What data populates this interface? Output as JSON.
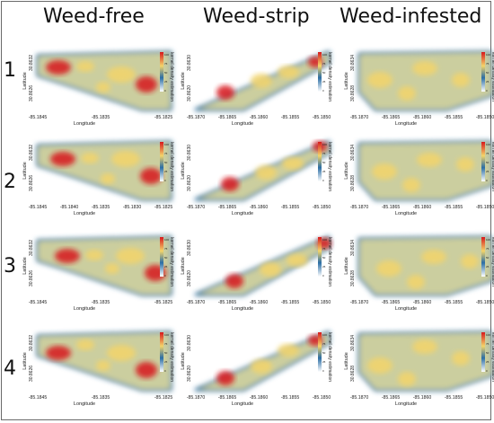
{
  "columns": [
    "Weed-free",
    "Weed-strip",
    "Weed-infested"
  ],
  "rows": [
    "1",
    "2",
    "3",
    "4"
  ],
  "axis": {
    "xlabel": "Longitude",
    "ylabel": "Latitude",
    "legend_label": "kernel density estimation"
  },
  "legend_ticks": [
    "100",
    "75",
    "50",
    "25",
    "0"
  ],
  "colors": {
    "low": "#2b6ea5",
    "mid": "#f3d46a",
    "high": "#d7191c",
    "edge": "#9cc7e0"
  },
  "panels": {
    "col0": {
      "xticks": [
        "-85.1845",
        "-85.1840",
        "-85.1835",
        "-85.1830",
        "-85.1825"
      ],
      "xticks_sparse": [
        "-85.1845",
        "-85.1835",
        "-85.1825"
      ],
      "yticks": [
        "30.8632",
        "30.8626"
      ]
    },
    "col1": {
      "xticks": [
        "-85.1870",
        "-85.1865",
        "-85.1860",
        "-85.1855",
        "-85.1850"
      ],
      "yticks": [
        "30.8630",
        "30.8620"
      ]
    },
    "col2": {
      "xticks": [
        "-85.1870",
        "-85.1865",
        "-85.1860",
        "-85.1855",
        "-85.1850"
      ],
      "yticks": [
        "30.8634",
        "30.8628"
      ]
    }
  }
}
